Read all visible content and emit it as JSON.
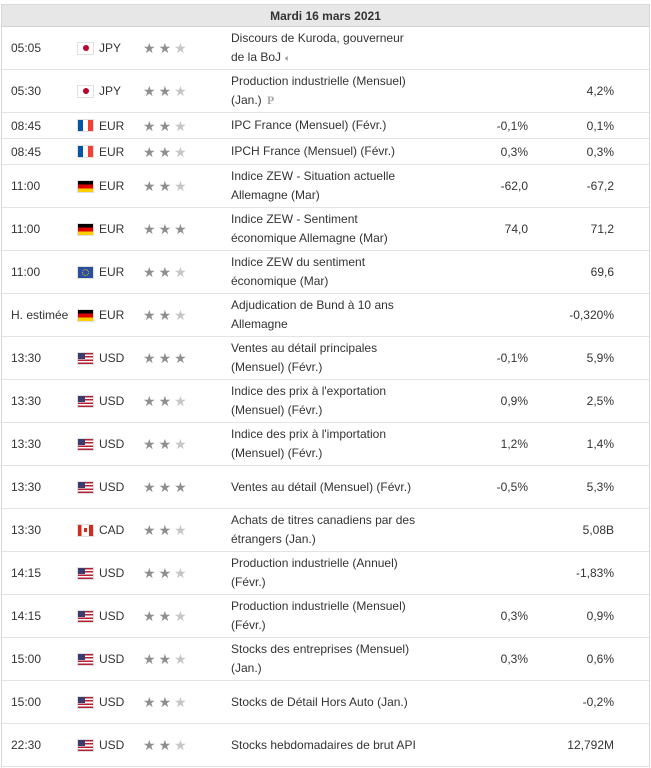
{
  "calendar": {
    "date": "Mardi 16 mars 2021",
    "star_color_on": "#8f8f8f",
    "star_color_off": "#c6c6c6",
    "events": [
      {
        "time": "05:05",
        "flag": "JP",
        "currency": "JPY",
        "importance": 2,
        "event": "Discours de Kuroda, gouverneur de la BoJ",
        "icon": "speaker-icon",
        "actual": "",
        "previous": ""
      },
      {
        "time": "05:30",
        "flag": "JP",
        "currency": "JPY",
        "importance": 2,
        "event": "Production industrielle (Mensuel) (Jan.)",
        "icon": "preliminary-icon",
        "icon_text": "P",
        "actual": "",
        "previous": "4,2%"
      },
      {
        "time": "08:45",
        "flag": "FR",
        "currency": "EUR",
        "importance": 2,
        "event": "IPC France (Mensuel) (Févr.)",
        "actual": "-0,1%",
        "previous": "0,1%"
      },
      {
        "time": "08:45",
        "flag": "FR",
        "currency": "EUR",
        "importance": 2,
        "event": "IPCH France (Mensuel) (Févr.)",
        "actual": "0,3%",
        "previous": "0,3%"
      },
      {
        "time": "11:00",
        "flag": "DE",
        "currency": "EUR",
        "importance": 2,
        "event": "Indice ZEW - Situation actuelle Allemagne (Mar)",
        "actual": "-62,0",
        "previous": "-67,2"
      },
      {
        "time": "11:00",
        "flag": "DE",
        "currency": "EUR",
        "importance": 3,
        "event": "Indice ZEW - Sentiment économique Allemagne (Mar)",
        "actual": "74,0",
        "previous": "71,2"
      },
      {
        "time": "11:00",
        "flag": "EU",
        "currency": "EUR",
        "importance": 2,
        "event": "Indice ZEW du sentiment économique (Mar)",
        "actual": "",
        "previous": "69,6"
      },
      {
        "time": "H. estimée",
        "flag": "DE",
        "currency": "EUR",
        "importance": 2,
        "event": "Adjudication de Bund à 10 ans Allemagne",
        "actual": "",
        "previous": "-0,320%"
      },
      {
        "time": "13:30",
        "flag": "US",
        "currency": "USD",
        "importance": 3,
        "event": "Ventes au détail principales (Mensuel) (Févr.)",
        "actual": "-0,1%",
        "previous": "5,9%"
      },
      {
        "time": "13:30",
        "flag": "US",
        "currency": "USD",
        "importance": 2,
        "event": "Indice des prix à l'exportation (Mensuel) (Févr.)",
        "actual": "0,9%",
        "previous": "2,5%"
      },
      {
        "time": "13:30",
        "flag": "US",
        "currency": "USD",
        "importance": 2,
        "event": "Indice des prix à l'importation (Mensuel) (Févr.)",
        "actual": "1,2%",
        "previous": "1,4%"
      },
      {
        "time": "13:30",
        "flag": "US",
        "currency": "USD",
        "importance": 3,
        "event": "Ventes au détail (Mensuel) (Févr.)",
        "actual": "-0,5%",
        "previous": "5,3%"
      },
      {
        "time": "13:30",
        "flag": "CA",
        "currency": "CAD",
        "importance": 2,
        "event": "Achats de titres canadiens par des étrangers (Jan.)",
        "actual": "",
        "previous": "5,08B"
      },
      {
        "time": "14:15",
        "flag": "US",
        "currency": "USD",
        "importance": 2,
        "event": "Production industrielle (Annuel) (Févr.)",
        "actual": "",
        "previous": "-1,83%"
      },
      {
        "time": "14:15",
        "flag": "US",
        "currency": "USD",
        "importance": 2,
        "event": "Production industrielle (Mensuel) (Févr.)",
        "actual": "0,3%",
        "previous": "0,9%"
      },
      {
        "time": "15:00",
        "flag": "US",
        "currency": "USD",
        "importance": 2,
        "event": "Stocks des entreprises (Mensuel) (Jan.)",
        "actual": "0,3%",
        "previous": "0,6%"
      },
      {
        "time": "15:00",
        "flag": "US",
        "currency": "USD",
        "importance": 2,
        "event": "Stocks de Détail Hors Auto (Jan.)",
        "actual": "",
        "previous": "-0,2%"
      },
      {
        "time": "22:30",
        "flag": "US",
        "currency": "USD",
        "importance": 2,
        "event": "Stocks hebdomadaires de brut API",
        "actual": "",
        "previous": "12,792M"
      }
    ]
  }
}
